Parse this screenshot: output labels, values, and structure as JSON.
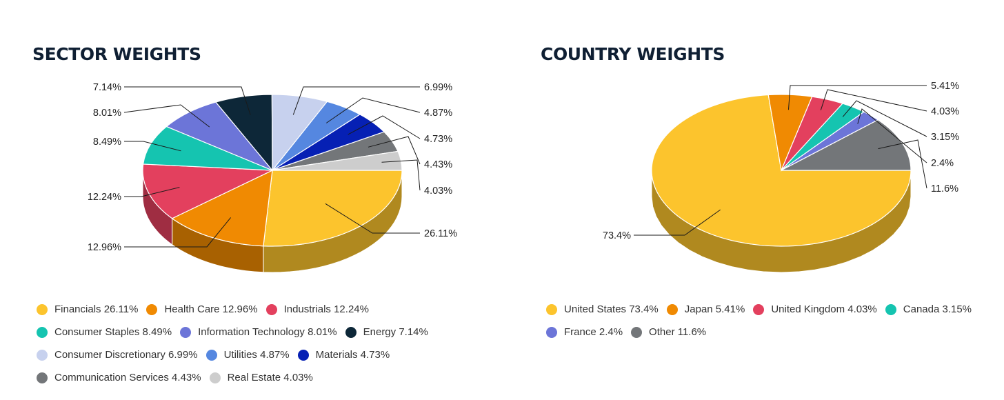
{
  "chart_data": [
    {
      "type": "pie",
      "title": "SECTOR WEIGHTS",
      "slices": [
        {
          "name": "Financials",
          "value": 26.11,
          "label": "26.11%",
          "color": "#fcc42d"
        },
        {
          "name": "Health Care",
          "value": 12.96,
          "label": "12.96%",
          "color": "#f08a02"
        },
        {
          "name": "Industrials",
          "value": 12.24,
          "label": "12.24%",
          "color": "#e3405e"
        },
        {
          "name": "Consumer Staples",
          "value": 8.49,
          "label": "8.49%",
          "color": "#15c4b0"
        },
        {
          "name": "Information Technology",
          "value": 8.01,
          "label": "8.01%",
          "color": "#6c75d8"
        },
        {
          "name": "Energy",
          "value": 7.14,
          "label": "7.14%",
          "color": "#0d2738"
        },
        {
          "name": "Consumer Discretionary",
          "value": 6.99,
          "label": "6.99%",
          "color": "#c7d1ee"
        },
        {
          "name": "Utilities",
          "value": 4.87,
          "label": "4.87%",
          "color": "#5587e0"
        },
        {
          "name": "Materials",
          "value": 4.73,
          "label": "4.73%",
          "color": "#0620b4"
        },
        {
          "name": "Communication Services",
          "value": 4.43,
          "label": "4.43%",
          "color": "#737679"
        },
        {
          "name": "Real Estate",
          "value": 4.03,
          "label": "4.03%",
          "color": "#cdcdcd"
        }
      ],
      "legend": {
        "placement": "bottom",
        "rows": [
          [
            "Financials 26.11%",
            "Health Care 12.96%",
            "Industrials 12.24%"
          ],
          [
            "Consumer Staples 8.49%",
            "Information Technology 8.01%",
            "Energy 7.14%"
          ],
          [
            "Consumer Discretionary 6.99%",
            "Utilities 4.87%",
            "Materials 4.73%"
          ],
          [
            "Communication Services 4.43%",
            "Real Estate 4.03%"
          ]
        ]
      }
    },
    {
      "type": "pie",
      "title": "COUNTRY WEIGHTS",
      "slices": [
        {
          "name": "United States",
          "value": 73.4,
          "label": "73.4%",
          "color": "#fcc42d"
        },
        {
          "name": "Japan",
          "value": 5.41,
          "label": "5.41%",
          "color": "#f08a02"
        },
        {
          "name": "United Kingdom",
          "value": 4.03,
          "label": "4.03%",
          "color": "#e3405e"
        },
        {
          "name": "Canada",
          "value": 3.15,
          "label": "3.15%",
          "color": "#15c4b0"
        },
        {
          "name": "France",
          "value": 2.4,
          "label": "2.4%",
          "color": "#6c75d8"
        },
        {
          "name": "Other",
          "value": 11.6,
          "label": "11.6%",
          "color": "#737679"
        }
      ],
      "legend": {
        "placement": "bottom",
        "rows": [
          [
            "United States 73.4%",
            "Japan 5.41%",
            "United Kingdom 4.03%",
            "Canada 3.15%"
          ],
          [
            "France 2.4%",
            "Other 11.6%"
          ]
        ]
      }
    }
  ]
}
